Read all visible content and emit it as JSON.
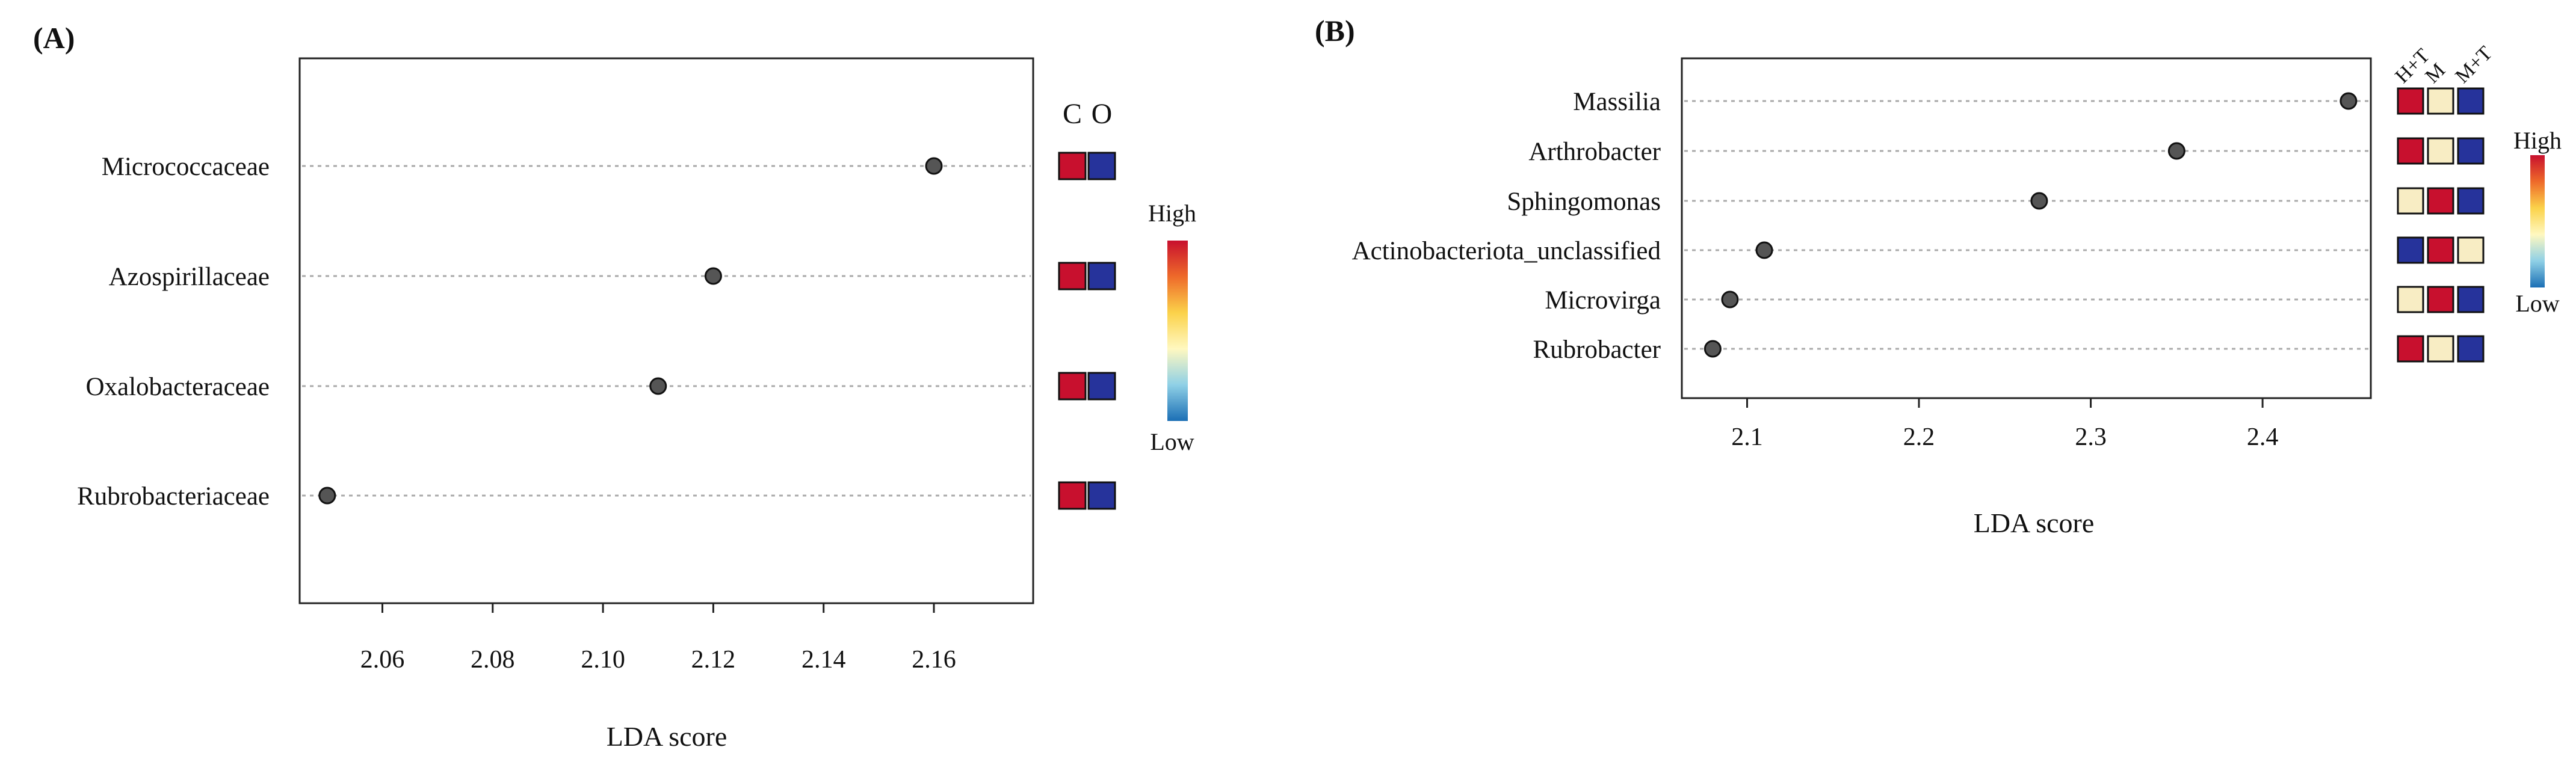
{
  "chart_data": [
    {
      "panel_label": "(A)",
      "type": "scatter",
      "categories": [
        "Micrococcaceae",
        "Azospirillaceae",
        "Oxalobacteraceae",
        "Rubrobacteriaceae"
      ],
      "values": [
        2.16,
        2.12,
        2.11,
        2.05
      ],
      "xlabel": "LDA score",
      "xlim": [
        2.045,
        2.178
      ],
      "xticks": [
        2.06,
        2.08,
        2.1,
        2.12,
        2.14,
        2.16
      ],
      "tick_labels": [
        "2.06",
        "2.08",
        "2.10",
        "2.12",
        "2.14",
        "2.16"
      ],
      "grid": "horizontal dotted guide lines",
      "heatmap_columns": [
        "C",
        "O"
      ],
      "heatmap_levels": [
        [
          "high",
          "low"
        ],
        [
          "high",
          "low"
        ],
        [
          "high",
          "low"
        ],
        [
          "high",
          "low"
        ]
      ],
      "legend": {
        "high": "High",
        "low": "Low",
        "placement": "right"
      }
    },
    {
      "panel_label": "(B)",
      "type": "scatter",
      "categories": [
        "Massilia",
        "Arthrobacter",
        "Sphingomonas",
        "Actinobacteriota_unclassified",
        "Microvirga",
        "Rubrobacter"
      ],
      "values": [
        2.45,
        2.35,
        2.27,
        2.11,
        2.09,
        2.08
      ],
      "xlabel": "LDA score",
      "xlim": [
        2.062,
        2.463
      ],
      "xticks": [
        2.1,
        2.2,
        2.3,
        2.4
      ],
      "tick_labels": [
        "2.1",
        "2.2",
        "2.3",
        "2.4"
      ],
      "grid": "horizontal dotted guide lines",
      "heatmap_columns": [
        "H+T",
        "M",
        "M+T"
      ],
      "heatmap_levels": [
        [
          "high",
          "mid",
          "low"
        ],
        [
          "high",
          "mid",
          "low"
        ],
        [
          "mid",
          "high",
          "low"
        ],
        [
          "low",
          "high",
          "mid"
        ],
        [
          "mid",
          "high",
          "low"
        ],
        [
          "high",
          "mid",
          "low"
        ]
      ],
      "legend": {
        "high": "High",
        "low": "Low",
        "placement": "right"
      }
    }
  ],
  "colors": {
    "high": "#c8102e",
    "mid": "#f8edc4",
    "low": "#26339b",
    "point": "#555555",
    "guide": "#aaaaaa",
    "gradient": [
      "#c8102e",
      "#ee6a2a",
      "#fbd24a",
      "#fff8c0",
      "#8fd0e6",
      "#1b6fb5"
    ]
  }
}
